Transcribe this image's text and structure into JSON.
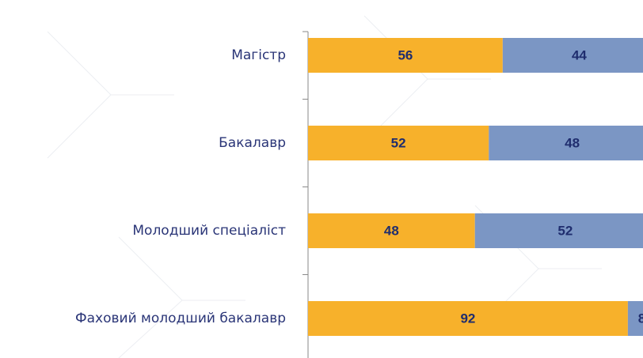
{
  "chart_data": {
    "type": "stacked_barh",
    "categories": [
      "Магістр",
      "Бакалавр",
      "Молодший спеціаліст",
      "Фаховий молодший бакалавр"
    ],
    "series": [
      {
        "color": "#f7b12b",
        "values": [
          56,
          52,
          48,
          92
        ]
      },
      {
        "color": "#7b96c4",
        "values": [
          44,
          48,
          52,
          8
        ]
      }
    ],
    "xlim": [
      0,
      100
    ]
  }
}
